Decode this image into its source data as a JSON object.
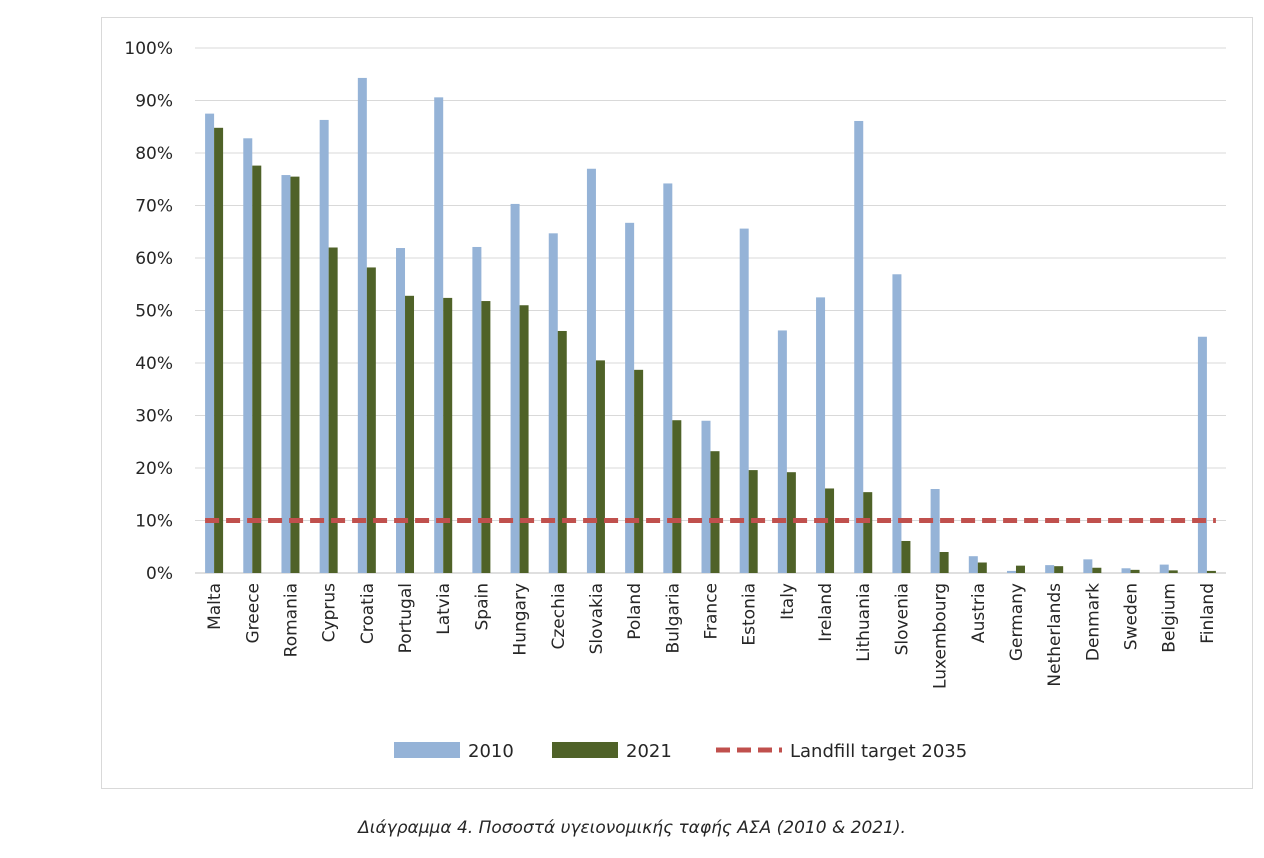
{
  "caption": "Διάγραμμα 4. Ποσοστά υγειονομικής ταφής ΑΣΑ (2010 & 2021).",
  "chart_data": {
    "type": "bar",
    "categories": [
      "Malta",
      "Greece",
      "Romania",
      "Cyprus",
      "Croatia",
      "Portugal",
      "Latvia",
      "Spain",
      "Hungary",
      "Czechia",
      "Slovakia",
      "Poland",
      "Bulgaria",
      "France",
      "Estonia",
      "Italy",
      "Ireland",
      "Lithuania",
      "Slovenia",
      "Luxembourg",
      "Austria",
      "Germany",
      "Netherlands",
      "Denmark",
      "Sweden",
      "Belgium",
      "Finland"
    ],
    "series": [
      {
        "name": "2010",
        "color": "#95b3d7",
        "values": [
          87.5,
          82.8,
          75.8,
          86.3,
          94.3,
          61.9,
          90.6,
          62.1,
          70.3,
          64.7,
          77.0,
          66.7,
          74.2,
          29.0,
          65.6,
          46.2,
          52.5,
          86.1,
          56.9,
          16.0,
          3.2,
          0.4,
          1.5,
          2.6,
          0.9,
          1.6,
          45.0
        ]
      },
      {
        "name": "2021",
        "color": "#4f6228",
        "values": [
          84.8,
          77.6,
          75.5,
          62.0,
          58.2,
          52.8,
          52.4,
          51.8,
          51.0,
          46.1,
          40.5,
          38.7,
          29.1,
          23.2,
          19.6,
          19.2,
          16.1,
          15.4,
          6.1,
          4.0,
          2.0,
          1.4,
          1.3,
          1.0,
          0.6,
          0.5,
          0.4
        ]
      }
    ],
    "reference_line": {
      "name": "Landfill target 2035",
      "value": 10,
      "color": "#c0504d",
      "style": "dashed"
    },
    "y_ticks": [
      "0%",
      "10%",
      "20%",
      "30%",
      "40%",
      "50%",
      "60%",
      "70%",
      "80%",
      "90%",
      "100%"
    ],
    "ylim": [
      0,
      100
    ],
    "grid": true,
    "legend_position": "bottom",
    "title": "",
    "xlabel": "",
    "ylabel": ""
  }
}
